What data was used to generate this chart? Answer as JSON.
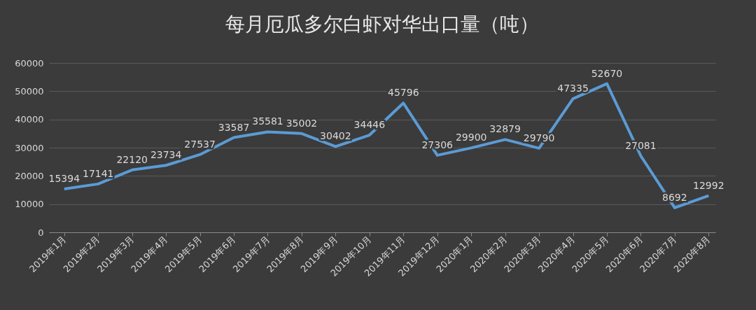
{
  "chart_data": {
    "type": "line",
    "title": "每月厄瓜多尔白虾对华出口量（吨）",
    "categories": [
      "2019年1月",
      "2019年2月",
      "2019年3月",
      "2019年4月",
      "2019年5月",
      "2019年6月",
      "2019年7月",
      "2019年8月",
      "2019年9月",
      "2019年10月",
      "2019年11月",
      "2019年12月",
      "2020年1月",
      "2020年2月",
      "2020年3月",
      "2020年4月",
      "2020年5月",
      "2020年6月",
      "2020年7月",
      "2020年8月"
    ],
    "series": [
      {
        "color": "#5b9bd5",
        "values": [
          15394,
          17141,
          22120,
          23734,
          27537,
          33587,
          35581,
          35002,
          30402,
          34446,
          45796,
          27306,
          29900,
          32879,
          29790,
          47335,
          52670,
          27081,
          8692,
          12992
        ]
      }
    ],
    "ylim": [
      0,
      60000
    ],
    "yticks": [
      0,
      10000,
      20000,
      30000,
      40000,
      50000,
      60000
    ],
    "grid": "y",
    "data_labels": true,
    "legend": false,
    "marker": "none",
    "line_style": "solid"
  }
}
